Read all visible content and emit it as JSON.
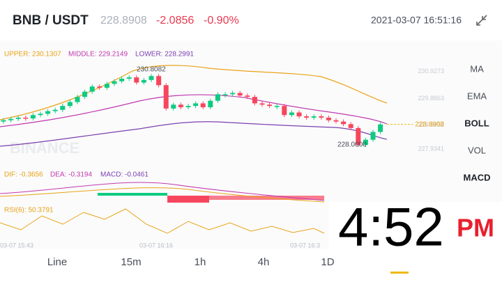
{
  "header": {
    "pair": "BNB / USDT",
    "price": "228.8908",
    "change": "-2.0856",
    "change_pct": "-0.90%",
    "datetime": "2021-03-07 16:51:16"
  },
  "chart": {
    "boll_legend": {
      "upper": "UPPER: 230.1307",
      "middle": "MIDDLE: 229.2149",
      "lower": "LOWER: 228.2991"
    },
    "watermark": "BINANCE",
    "high_label": "230.8082",
    "low_label": "228.0000",
    "last_price": 228.8908,
    "ylim": [
      227.3,
      231.4
    ],
    "yticks": [
      230.9273,
      229.8863,
      228.8652,
      227.9341
    ],
    "first_open": 229.0,
    "close": [
      229.05,
      229.1,
      229.15,
      229.12,
      229.25,
      229.3,
      229.4,
      229.45,
      229.6,
      229.75,
      229.95,
      230.15,
      230.35,
      230.3,
      230.45,
      230.55,
      230.65,
      230.7,
      230.5,
      230.6,
      230.75,
      230.4,
      229.5,
      229.65,
      229.55,
      229.6,
      229.7,
      229.55,
      229.8,
      230.05,
      230.05,
      230.1,
      230.0,
      229.95,
      229.7,
      229.65,
      229.6,
      229.6,
      229.25,
      229.35,
      229.2,
      229.15,
      229.2,
      229.15,
      229.05,
      229.0,
      228.9,
      228.75,
      228.1,
      228.3,
      228.6,
      228.89
    ],
    "macd_legend": {
      "dif": "DIF: -0.3656",
      "dea": "DEA: -0.3194",
      "macd": "MACD: -0.0461"
    },
    "rsi_legend": "RSI(6): 50.3791",
    "time_labels": [
      "03-07 15:43",
      "03-07 16:16",
      "03-07 16:3"
    ]
  },
  "indicators": [
    "MA",
    "EMA",
    "BOLL",
    "VOL",
    "MACD"
  ],
  "tabs": [
    "Line",
    "15m",
    "1h",
    "4h",
    "1D"
  ],
  "clock": {
    "time": "4:52",
    "ampm": "PM"
  }
}
